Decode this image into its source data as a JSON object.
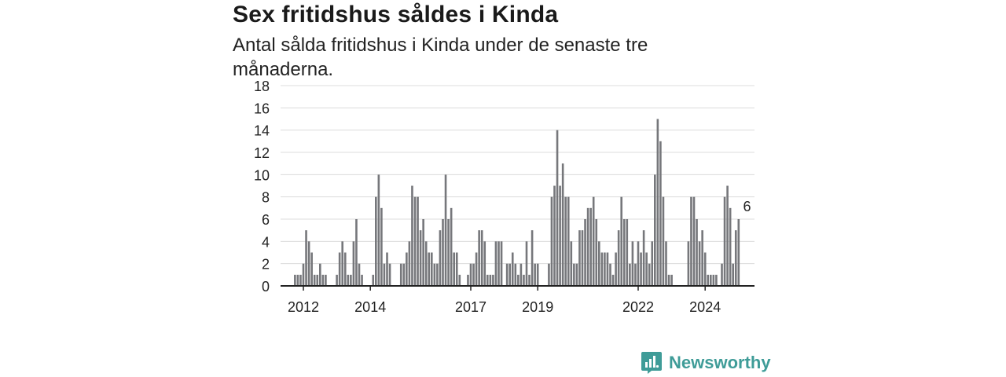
{
  "title": "Sex fritidshus såldes i Kinda",
  "subtitle": "Antal sålda fritidshus i Kinda under de senaste tre månaderna.",
  "brand": "Newsworthy",
  "colors": {
    "bar": "#76777b",
    "highlight": "#1a9e98",
    "grid": "#dcdcdc",
    "axis": "#222222",
    "brand": "#3f9c98"
  },
  "chart_data": {
    "type": "bar",
    "title": "Sex fritidshus såldes i Kinda",
    "subtitle": "Antal sålda fritidshus i Kinda under de senaste tre månaderna.",
    "xlabel": "",
    "ylabel": "",
    "ylim": [
      0,
      18
    ],
    "yticks": [
      0,
      2,
      4,
      6,
      8,
      10,
      12,
      14,
      16,
      18
    ],
    "xtick_labels": [
      {
        "label": "2012",
        "month": "2012-01"
      },
      {
        "label": "2014",
        "month": "2014-01"
      },
      {
        "label": "2017",
        "month": "2017-01"
      },
      {
        "label": "2019",
        "month": "2019-01"
      },
      {
        "label": "2022",
        "month": "2022-01"
      },
      {
        "label": "2024",
        "month": "2024-01"
      }
    ],
    "grid": true,
    "start_month": "2011-10",
    "values": [
      1,
      1,
      1,
      2,
      5,
      4,
      3,
      1,
      1,
      2,
      1,
      1,
      null,
      null,
      null,
      1,
      3,
      4,
      3,
      1,
      1,
      4,
      6,
      2,
      1,
      null,
      null,
      null,
      1,
      8,
      10,
      7,
      2,
      3,
      2,
      null,
      null,
      null,
      2,
      2,
      3,
      4,
      9,
      8,
      8,
      5,
      6,
      4,
      3,
      3,
      2,
      2,
      5,
      6,
      10,
      6,
      7,
      3,
      3,
      1,
      null,
      null,
      1,
      2,
      2,
      3,
      5,
      5,
      4,
      1,
      1,
      1,
      4,
      4,
      4,
      null,
      2,
      2,
      3,
      2,
      1,
      2,
      1,
      4,
      1,
      5,
      2,
      2,
      null,
      null,
      null,
      2,
      8,
      9,
      14,
      9,
      11,
      8,
      8,
      4,
      2,
      2,
      5,
      5,
      6,
      7,
      7,
      8,
      6,
      4,
      3,
      3,
      3,
      2,
      1,
      3,
      5,
      8,
      6,
      6,
      2,
      4,
      2,
      4,
      3,
      5,
      3,
      2,
      4,
      10,
      15,
      13,
      8,
      4,
      1,
      1,
      null,
      null,
      null,
      null,
      null,
      4,
      8,
      8,
      6,
      4,
      5,
      3,
      1,
      1,
      1,
      1,
      null,
      2,
      8,
      9,
      7,
      2,
      5,
      6
    ],
    "highlight": {
      "month": "2025-04",
      "value": 6,
      "label": "6"
    },
    "end_month": "2025-04"
  }
}
